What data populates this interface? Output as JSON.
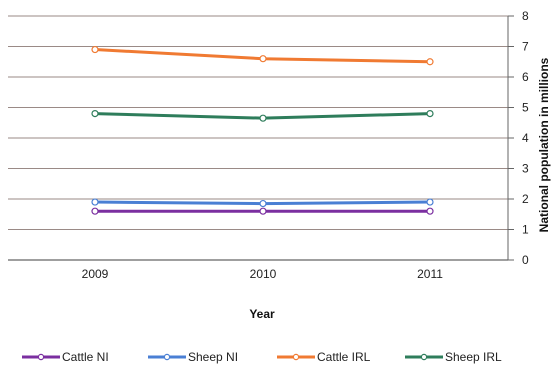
{
  "chart_data": {
    "type": "line",
    "categories": [
      "2009",
      "2010",
      "2011"
    ],
    "xlabel": "Year",
    "ylabel": "National population in millions",
    "ylim": [
      0,
      8
    ],
    "yticks": [
      0,
      1,
      2,
      3,
      4,
      5,
      6,
      7,
      8
    ],
    "grid": true,
    "legend_placement": "bottom",
    "series": [
      {
        "name": "Cattle NI",
        "color": "#7b2fa0",
        "values": [
          1.6,
          1.6,
          1.6
        ]
      },
      {
        "name": "Sheep NI",
        "color": "#4a7fd4",
        "values": [
          1.9,
          1.85,
          1.9
        ]
      },
      {
        "name": "Cattle IRL",
        "color": "#f07a32",
        "values": [
          6.9,
          6.6,
          6.5
        ]
      },
      {
        "name": "Sheep IRL",
        "color": "#2e7d5b",
        "values": [
          4.8,
          4.65,
          4.8
        ]
      }
    ]
  }
}
